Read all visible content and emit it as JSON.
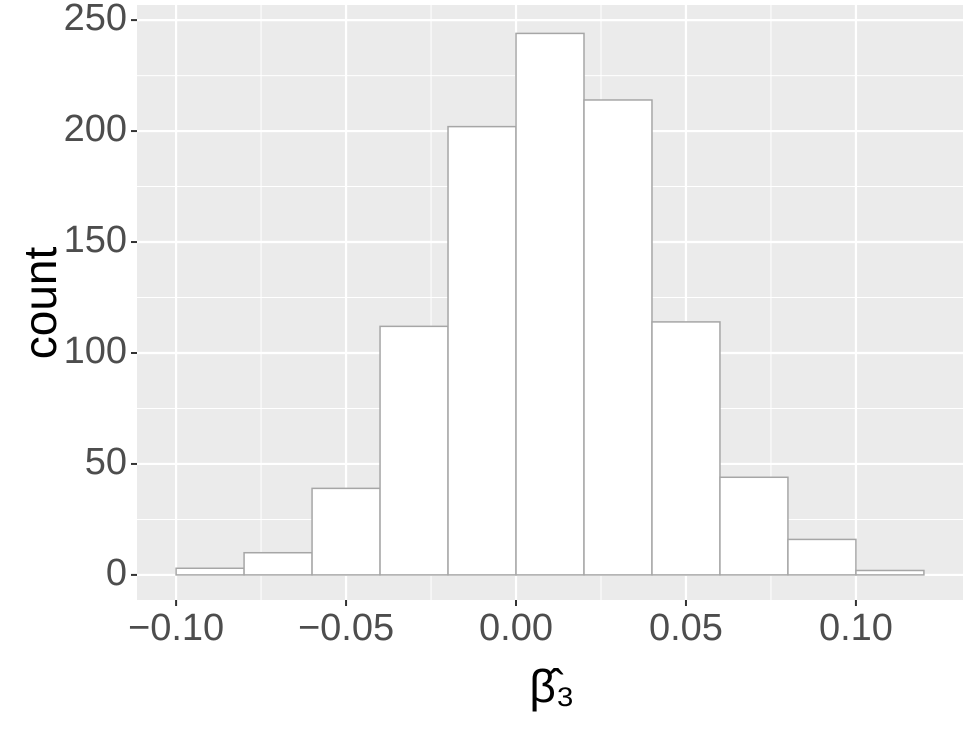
{
  "chart_data": {
    "type": "histogram",
    "x_label": "β̂₃",
    "y_label": "count",
    "bins": [
      -0.1,
      -0.08,
      -0.06,
      -0.04,
      -0.02,
      0.0,
      0.02,
      0.04,
      0.06,
      0.08,
      0.1,
      0.12
    ],
    "values": [
      3,
      10,
      39,
      112,
      202,
      244,
      214,
      114,
      44,
      16,
      2
    ],
    "color": "#ffffff",
    "edge_color": "#a6a6a6",
    "xlim": [
      -0.1115,
      0.1315
    ],
    "ylim": [
      -11.3,
      256.8
    ],
    "xticks": [
      {
        "value": -0.1,
        "label": "−0.10"
      },
      {
        "value": -0.05,
        "label": "−0.05"
      },
      {
        "value": 0.0,
        "label": "0.00"
      },
      0.05,
      {
        "value": 0.1,
        "label": "0.10"
      }
    ],
    "yticks": [
      0,
      50,
      100,
      150,
      200,
      250
    ],
    "grid": true
  }
}
